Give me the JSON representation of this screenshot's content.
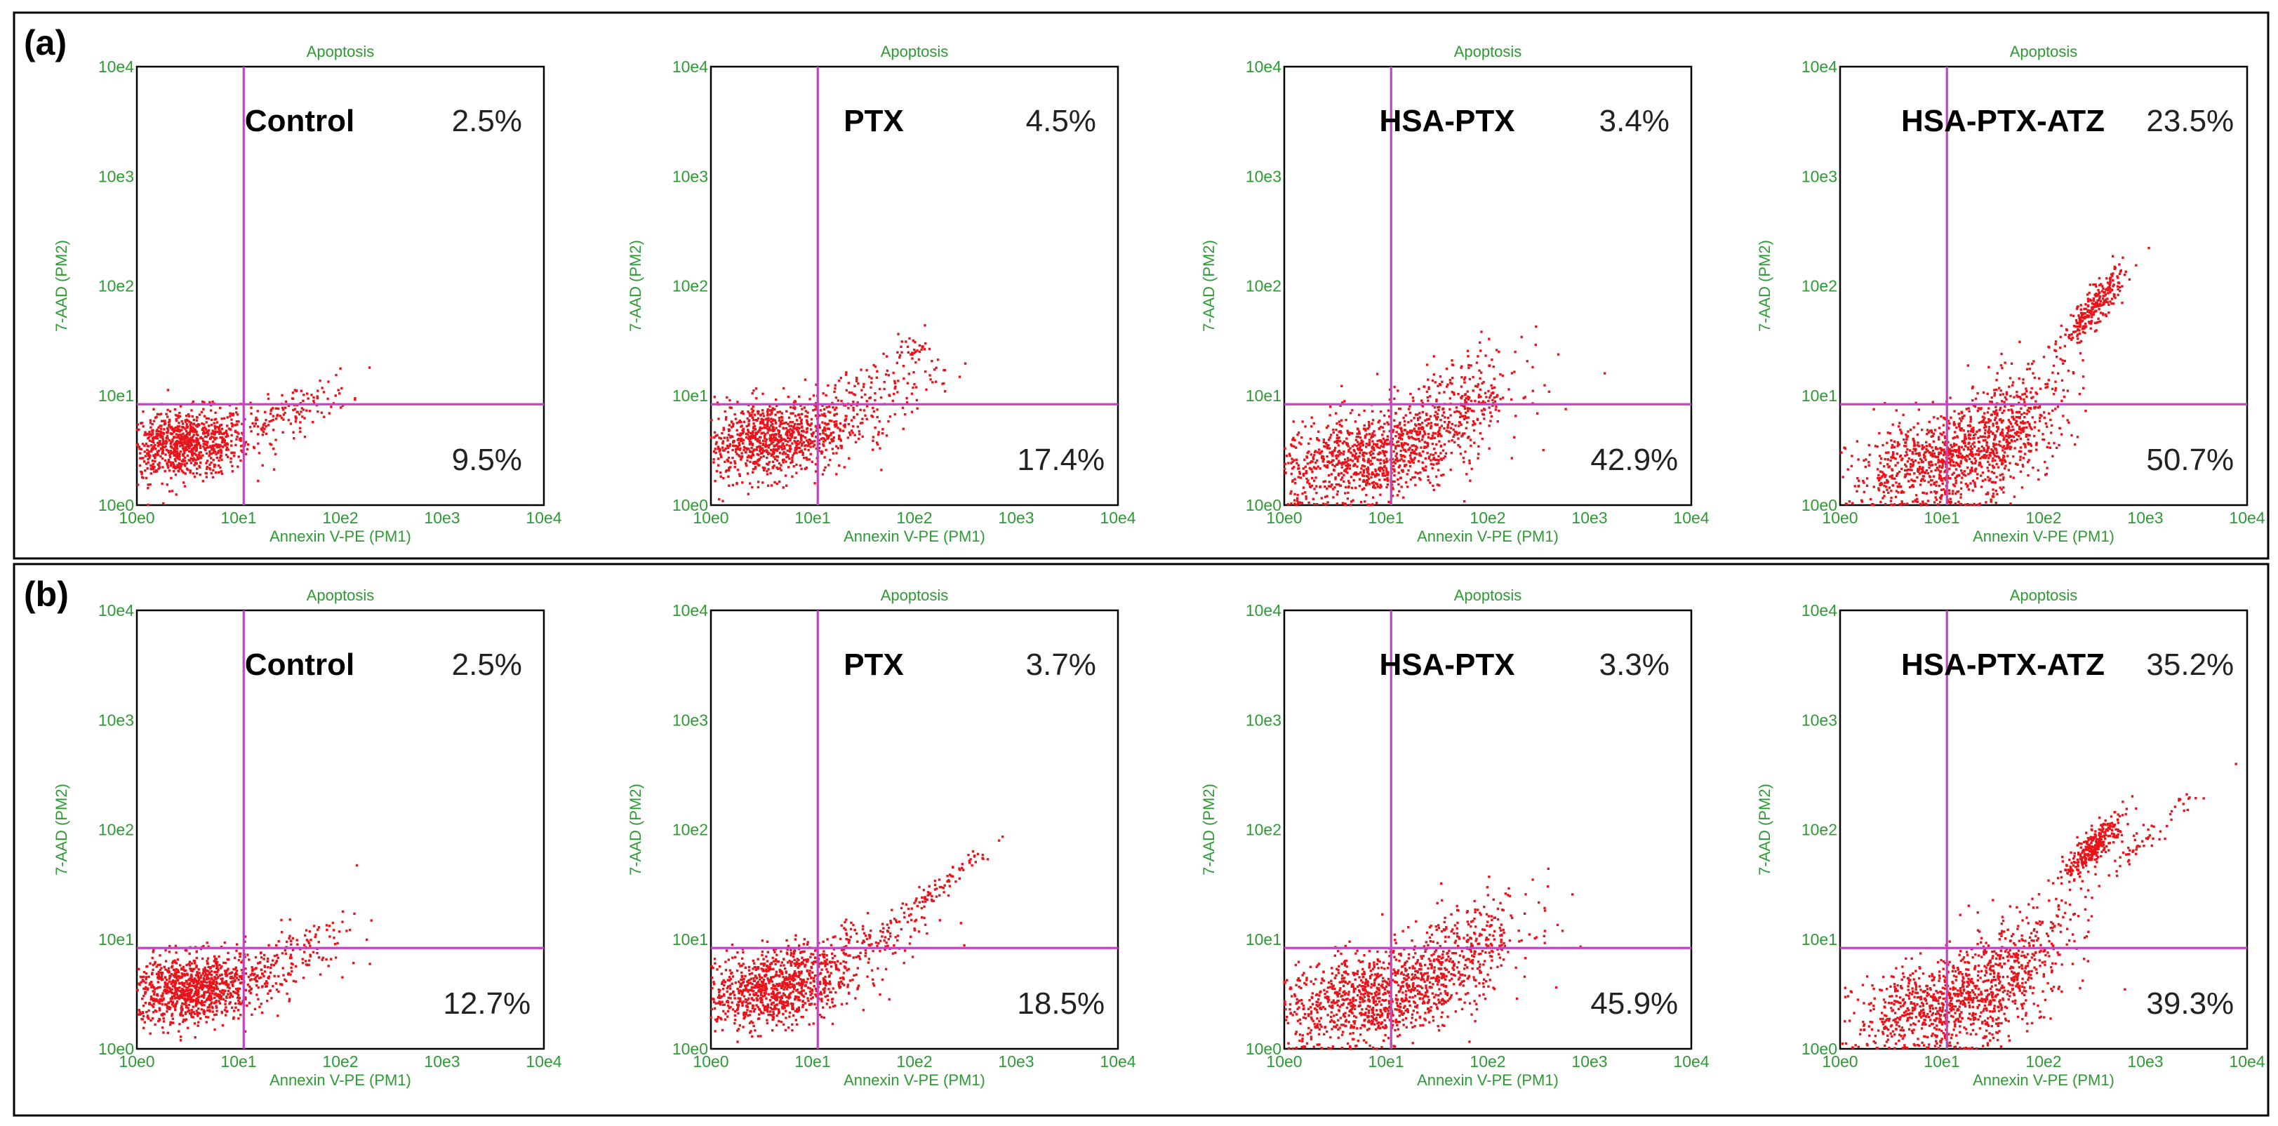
{
  "colors": {
    "dots": "#e8141b",
    "gate": "#c246c2",
    "axis_text": "#2e9a33"
  },
  "chart_data": {
    "type": "scatter",
    "description_free": true,
    "axis_scale": "log10",
    "title": "Apoptosis",
    "xlabel": "Annexin V-PE (PM1)",
    "ylabel": "7-AAD (PM2)",
    "xlim_log": [
      0,
      4
    ],
    "ylim_log": [
      0,
      4
    ],
    "tick_labels": [
      "10e0",
      "10e1",
      "10e2",
      "10e3",
      "10e4"
    ],
    "rows": [
      {
        "label": "(a)",
        "plots": [
          {
            "name": "Control",
            "late_apoptosis_pct": "2.5%",
            "early_apoptosis_pct": "9.5%",
            "gate_x_log": 1.05,
            "gate_y_log": 0.92,
            "populations": [
              {
                "cx": 0.45,
                "cy": 0.55,
                "sx": 0.33,
                "sy": 0.16,
                "n": 900,
                "rho": 0.2
              },
              {
                "cx": 1.5,
                "cy": 0.85,
                "sx": 0.3,
                "sy": 0.15,
                "n": 130,
                "rho": 0.7
              }
            ]
          },
          {
            "name": "PTX",
            "late_apoptosis_pct": "4.5%",
            "early_apoptosis_pct": "17.4%",
            "gate_x_log": 1.05,
            "gate_y_log": 0.92,
            "populations": [
              {
                "cx": 0.6,
                "cy": 0.6,
                "sx": 0.38,
                "sy": 0.18,
                "n": 900,
                "rho": 0.2
              },
              {
                "cx": 1.5,
                "cy": 0.95,
                "sx": 0.38,
                "sy": 0.22,
                "n": 180,
                "rho": 0.6
              },
              {
                "cx": 2.0,
                "cy": 1.42,
                "sx": 0.08,
                "sy": 0.05,
                "n": 30,
                "rho": 0.3
              }
            ]
          },
          {
            "name": "HSA-PTX",
            "late_apoptosis_pct": "3.4%",
            "early_apoptosis_pct": "42.9%",
            "gate_x_log": 1.05,
            "gate_y_log": 0.92,
            "populations": [
              {
                "cx": 0.75,
                "cy": 0.42,
                "sx": 0.45,
                "sy": 0.22,
                "n": 850,
                "rho": 0.3
              },
              {
                "cx": 1.65,
                "cy": 0.85,
                "sx": 0.35,
                "sy": 0.26,
                "n": 380,
                "rho": 0.5
              }
            ]
          },
          {
            "name": "HSA-PTX-ATZ",
            "late_apoptosis_pct": "23.5%",
            "early_apoptosis_pct": "50.7%",
            "gate_x_log": 1.05,
            "gate_y_log": 0.92,
            "populations": [
              {
                "cx": 1.0,
                "cy": 0.4,
                "sx": 0.45,
                "sy": 0.22,
                "n": 800,
                "rho": 0.35
              },
              {
                "cx": 1.65,
                "cy": 0.75,
                "sx": 0.35,
                "sy": 0.3,
                "n": 420,
                "rho": 0.55
              },
              {
                "cx": 2.5,
                "cy": 1.8,
                "sx": 0.15,
                "sy": 0.17,
                "n": 260,
                "rho": 0.85
              }
            ]
          }
        ]
      },
      {
        "label": "(b)",
        "plots": [
          {
            "name": "Control",
            "late_apoptosis_pct": "2.5%",
            "early_apoptosis_pct": "12.7%",
            "gate_x_log": 1.05,
            "gate_y_log": 0.92,
            "populations": [
              {
                "cx": 0.55,
                "cy": 0.55,
                "sx": 0.35,
                "sy": 0.16,
                "n": 1000,
                "rho": 0.2
              },
              {
                "cx": 1.55,
                "cy": 0.85,
                "sx": 0.32,
                "sy": 0.18,
                "n": 140,
                "rho": 0.6
              }
            ]
          },
          {
            "name": "PTX",
            "late_apoptosis_pct": "3.7%",
            "early_apoptosis_pct": "18.5%",
            "gate_x_log": 1.05,
            "gate_y_log": 0.92,
            "populations": [
              {
                "cx": 0.6,
                "cy": 0.55,
                "sx": 0.38,
                "sy": 0.18,
                "n": 950,
                "rho": 0.25
              },
              {
                "cx": 1.5,
                "cy": 0.95,
                "sx": 0.35,
                "sy": 0.2,
                "n": 160,
                "rho": 0.6
              },
              {
                "cx": 2.2,
                "cy": 1.45,
                "sx": 0.3,
                "sy": 0.22,
                "n": 90,
                "rho": 0.97
              }
            ]
          },
          {
            "name": "HSA-PTX",
            "late_apoptosis_pct": "3.3%",
            "early_apoptosis_pct": "45.9%",
            "gate_x_log": 1.05,
            "gate_y_log": 0.92,
            "populations": [
              {
                "cx": 0.8,
                "cy": 0.45,
                "sx": 0.45,
                "sy": 0.22,
                "n": 900,
                "rho": 0.3
              },
              {
                "cx": 1.7,
                "cy": 0.85,
                "sx": 0.38,
                "sy": 0.26,
                "n": 400,
                "rho": 0.55
              }
            ]
          },
          {
            "name": "HSA-PTX-ATZ",
            "late_apoptosis_pct": "35.2%",
            "early_apoptosis_pct": "39.3%",
            "gate_x_log": 1.05,
            "gate_y_log": 0.92,
            "populations": [
              {
                "cx": 1.0,
                "cy": 0.4,
                "sx": 0.42,
                "sy": 0.22,
                "n": 750,
                "rho": 0.35
              },
              {
                "cx": 1.7,
                "cy": 0.75,
                "sx": 0.35,
                "sy": 0.3,
                "n": 380,
                "rho": 0.55
              },
              {
                "cx": 2.5,
                "cy": 1.85,
                "sx": 0.15,
                "sy": 0.15,
                "n": 300,
                "rho": 0.85
              },
              {
                "cx": 3.0,
                "cy": 1.9,
                "sx": 0.25,
                "sy": 0.2,
                "n": 60,
                "rho": 0.95
              }
            ]
          }
        ]
      }
    ]
  }
}
